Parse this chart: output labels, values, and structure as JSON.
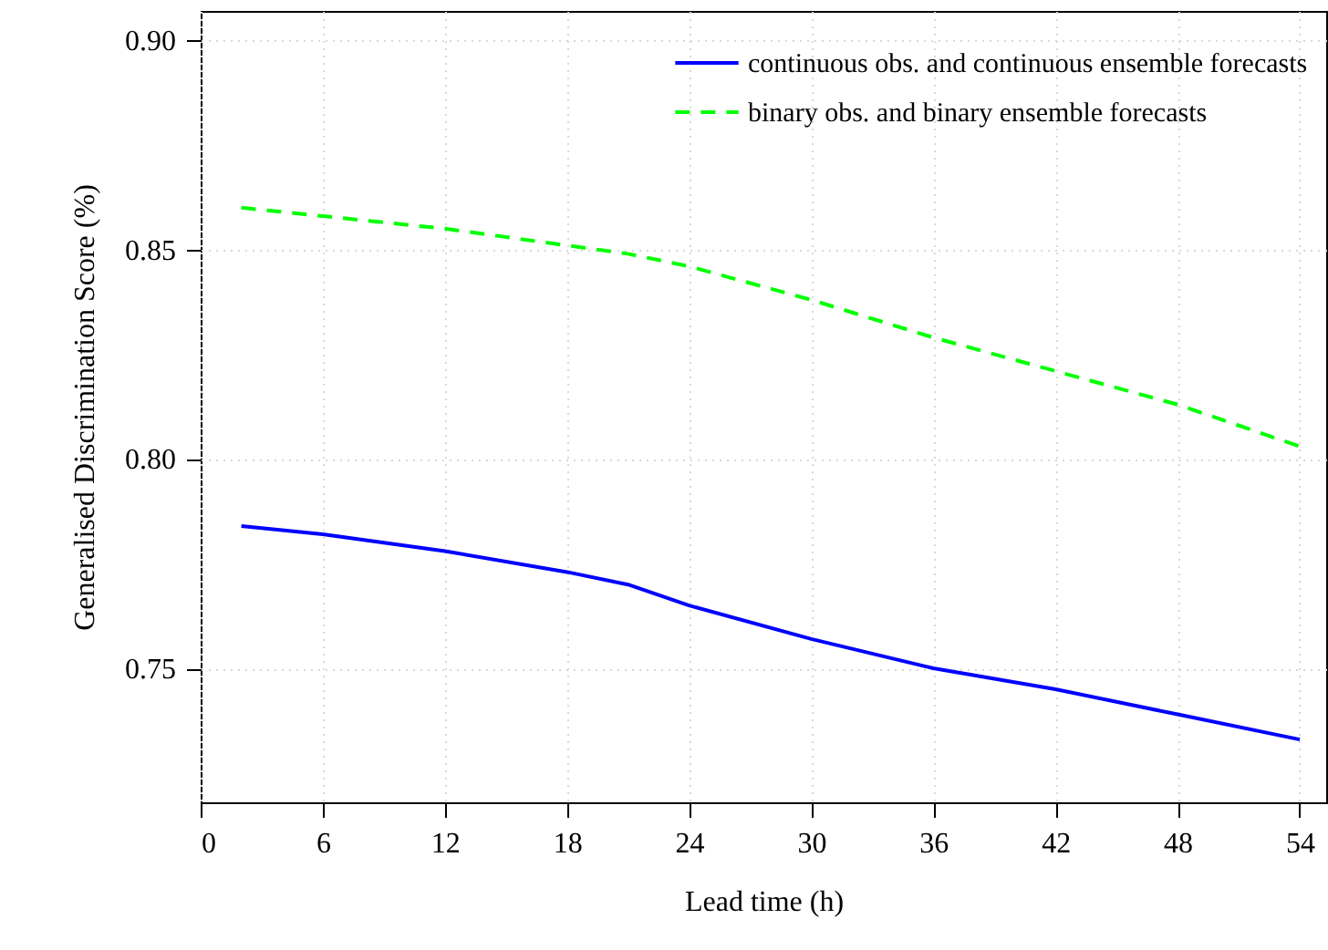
{
  "chart_data": {
    "type": "line",
    "xlabel": "Lead time (h)",
    "ylabel": "Generalised Discrimination Score (%)",
    "x": [
      2,
      6,
      12,
      18,
      21,
      24,
      30,
      36,
      42,
      48,
      54
    ],
    "series": [
      {
        "name": "continuous obs. and continuous ensemble forecasts",
        "color": "#0000ff",
        "line_style": "solid",
        "values": [
          0.784,
          0.782,
          0.778,
          0.773,
          0.77,
          0.765,
          0.757,
          0.75,
          0.745,
          0.739,
          0.733
        ]
      },
      {
        "name": "binary obs. and binary ensemble forecasts",
        "color": "#00ff00",
        "line_style": "dashed",
        "values": [
          0.86,
          0.858,
          0.855,
          0.851,
          0.849,
          0.846,
          0.838,
          0.829,
          0.821,
          0.813,
          0.803
        ]
      }
    ],
    "xlim": [
      0,
      55.3
    ],
    "ylim": [
      0.718,
      0.907
    ],
    "xticks": [
      0,
      6,
      12,
      18,
      24,
      30,
      36,
      42,
      48,
      54
    ],
    "yticks": [
      0.75,
      {
        "value": 0.8,
        "label": "0.80"
      },
      0.85,
      {
        "value": 0.9,
        "label": "0.90"
      }
    ],
    "grid": true,
    "legend": "top right",
    "marker": "none"
  }
}
